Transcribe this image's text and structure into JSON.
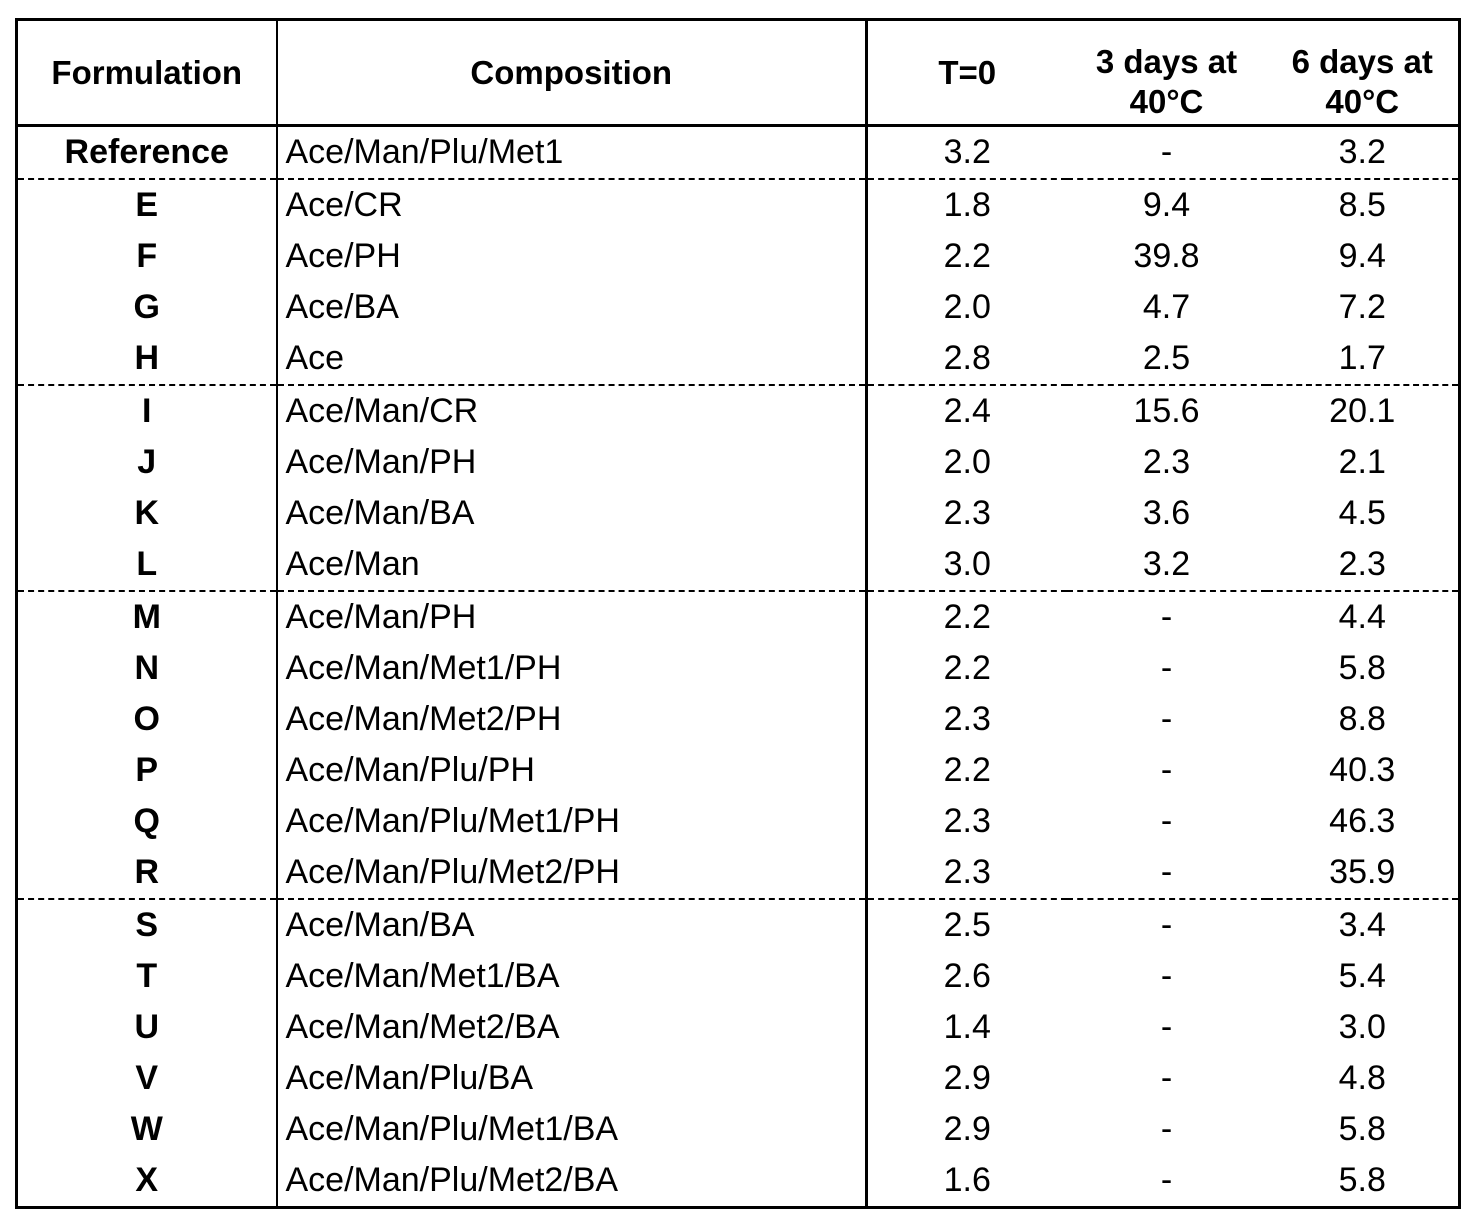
{
  "headers": {
    "formulation": "Formulation",
    "composition": "Composition",
    "t0": "T=0",
    "d3_line1": "3 days at",
    "d3_line2": "40°C",
    "d6_line1": "6 days at",
    "d6_line2": "40°C"
  },
  "rows": [
    {
      "f": "Reference",
      "c": "Ace/Man/Plu/Met1",
      "t0": "3.2",
      "d3": "-",
      "d6": "3.2",
      "group_end": true
    },
    {
      "f": "E",
      "c": "Ace/CR",
      "t0": "1.8",
      "d3": "9.4",
      "d6": "8.5"
    },
    {
      "f": "F",
      "c": "Ace/PH",
      "t0": "2.2",
      "d3": "39.8",
      "d6": "9.4"
    },
    {
      "f": "G",
      "c": "Ace/BA",
      "t0": "2.0",
      "d3": "4.7",
      "d6": "7.2"
    },
    {
      "f": "H",
      "c": "Ace",
      "t0": "2.8",
      "d3": "2.5",
      "d6": "1.7",
      "group_end": true
    },
    {
      "f": "I",
      "c": "Ace/Man/CR",
      "t0": "2.4",
      "d3": "15.6",
      "d6": "20.1"
    },
    {
      "f": "J",
      "c": "Ace/Man/PH",
      "t0": "2.0",
      "d3": "2.3",
      "d6": "2.1"
    },
    {
      "f": "K",
      "c": "Ace/Man/BA",
      "t0": "2.3",
      "d3": "3.6",
      "d6": "4.5"
    },
    {
      "f": "L",
      "c": "Ace/Man",
      "t0": "3.0",
      "d3": "3.2",
      "d6": "2.3",
      "group_end": true
    },
    {
      "f": "M",
      "c": "Ace/Man/PH",
      "t0": "2.2",
      "d3": "-",
      "d6": "4.4"
    },
    {
      "f": "N",
      "c": "Ace/Man/Met1/PH",
      "t0": "2.2",
      "d3": "-",
      "d6": "5.8"
    },
    {
      "f": "O",
      "c": "Ace/Man/Met2/PH",
      "t0": "2.3",
      "d3": "-",
      "d6": "8.8"
    },
    {
      "f": "P",
      "c": "Ace/Man/Plu/PH",
      "t0": "2.2",
      "d3": "-",
      "d6": "40.3"
    },
    {
      "f": "Q",
      "c": "Ace/Man/Plu/Met1/PH",
      "t0": "2.3",
      "d3": "-",
      "d6": "46.3"
    },
    {
      "f": "R",
      "c": "Ace/Man/Plu/Met2/PH",
      "t0": "2.3",
      "d3": "-",
      "d6": "35.9",
      "group_end": true
    },
    {
      "f": "S",
      "c": "Ace/Man/BA",
      "t0": "2.5",
      "d3": "-",
      "d6": "3.4"
    },
    {
      "f": "T",
      "c": "Ace/Man/Met1/BA",
      "t0": "2.6",
      "d3": "-",
      "d6": "5.4"
    },
    {
      "f": "U",
      "c": "Ace/Man/Met2/BA",
      "t0": "1.4",
      "d3": "-",
      "d6": "3.0"
    },
    {
      "f": "V",
      "c": "Ace/Man/Plu/BA",
      "t0": "2.9",
      "d3": "-",
      "d6": "4.8"
    },
    {
      "f": "W",
      "c": "Ace/Man/Plu/Met1/BA",
      "t0": "2.9",
      "d3": "-",
      "d6": "5.8"
    },
    {
      "f": "X",
      "c": "Ace/Man/Plu/Met2/BA",
      "t0": "1.6",
      "d3": "-",
      "d6": "5.8",
      "group_end": true
    }
  ]
}
